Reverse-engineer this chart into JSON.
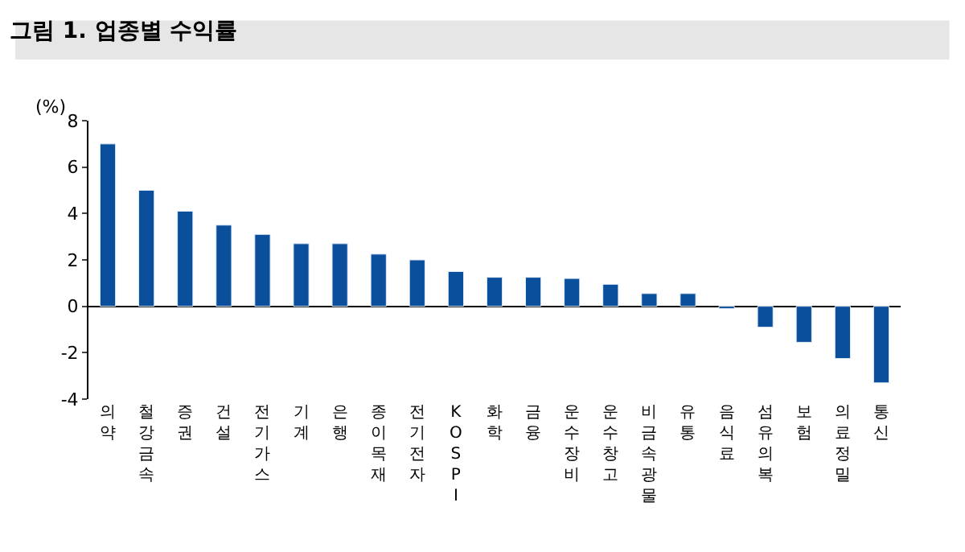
{
  "chart_data": {
    "type": "bar",
    "title": "그림 1. 업종별 수익률",
    "ylabel": "(%)",
    "categories": [
      "의약",
      "철강금속",
      "증권",
      "건설",
      "전기가스",
      "기계",
      "은행",
      "종이목재",
      "전기전자",
      "KOSPI",
      "화학",
      "금융",
      "운수장비",
      "운수창고",
      "비금속광물",
      "유통",
      "음식료",
      "섬유의복",
      "보험",
      "의료정밀",
      "통신"
    ],
    "values": [
      7.0,
      5.0,
      4.1,
      3.5,
      3.1,
      2.7,
      2.7,
      2.25,
      2.0,
      1.5,
      1.25,
      1.25,
      1.2,
      0.95,
      0.55,
      0.55,
      -0.1,
      -0.9,
      -1.55,
      -2.25,
      -3.3
    ],
    "color": "#0a4f9c",
    "ylim": [
      -4,
      8
    ],
    "yticks": [
      -4,
      -2,
      0,
      2,
      4,
      6,
      8
    ]
  }
}
